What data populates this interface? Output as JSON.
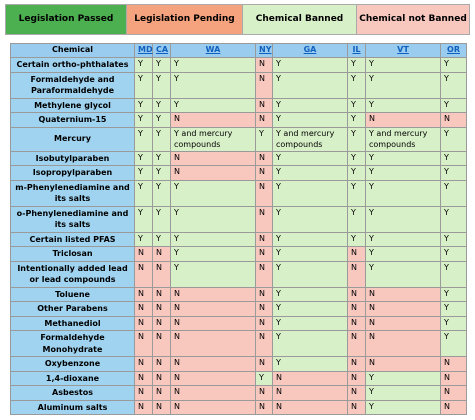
{
  "legend": [
    "Legislation Passed",
    "Legislation Pending",
    "Chemical Banned",
    "Chemical not Banned"
  ],
  "table": {
    "headers": [
      "Chemical",
      "MD",
      "CA",
      "WA",
      "NY",
      "GA",
      "IL",
      "VT",
      "OR"
    ],
    "rows": [
      [
        "Certain ortho-phthalates",
        "Y",
        "Y",
        "Y",
        "N",
        "Y",
        "Y",
        "Y",
        "Y"
      ],
      [
        "Formaldehyde and Paraformaldehyde",
        "Y",
        "Y",
        "Y",
        "N",
        "Y",
        "Y",
        "Y",
        "Y"
      ],
      [
        "Methylene glycol",
        "Y",
        "Y",
        "Y",
        "N",
        "Y",
        "Y",
        "Y",
        "Y"
      ],
      [
        "Quaternium-15",
        "Y",
        "Y",
        "N",
        "N",
        "Y",
        "Y",
        "N",
        "N"
      ],
      [
        "Mercury",
        "Y",
        "Y",
        "Y and mercury compounds",
        "Y",
        "Y and mercury compounds",
        "Y",
        "Y and mercury compounds",
        "Y"
      ],
      [
        "Isobutylparaben",
        "Y",
        "Y",
        "N",
        "N",
        "Y",
        "Y",
        "Y",
        "Y"
      ],
      [
        "Isopropylparaben",
        "Y",
        "Y",
        "N",
        "N",
        "Y",
        "Y",
        "Y",
        "Y"
      ],
      [
        "m-Phenylenediamine and its salts",
        "Y",
        "Y",
        "Y",
        "N",
        "Y",
        "Y",
        "Y",
        "Y"
      ],
      [
        "o-Phenylenediamine and its salts",
        "Y",
        "Y",
        "Y",
        "N",
        "Y",
        "Y",
        "Y",
        "Y"
      ],
      [
        "Certain listed PFAS",
        "Y",
        "Y",
        "Y",
        "N",
        "Y",
        "Y",
        "Y",
        "Y"
      ],
      [
        "Triclosan",
        "N",
        "N",
        "Y",
        "N",
        "Y",
        "N",
        "Y",
        "Y"
      ],
      [
        "Intentionally added lead or lead compounds",
        "N",
        "N",
        "Y",
        "N",
        "Y",
        "N",
        "Y",
        "Y"
      ],
      [
        "Toluene",
        "N",
        "N",
        "N",
        "N",
        "Y",
        "N",
        "N",
        "Y"
      ],
      [
        "Other Parabens",
        "N",
        "N",
        "N",
        "N",
        "Y",
        "N",
        "N",
        "Y"
      ],
      [
        "Methanediol",
        "N",
        "N",
        "N",
        "N",
        "Y",
        "N",
        "N",
        "Y"
      ],
      [
        "Formaldehyde Monohydrate",
        "N",
        "N",
        "N",
        "N",
        "Y",
        "N",
        "N",
        "Y"
      ],
      [
        "Oxybenzone",
        "N",
        "N",
        "N",
        "N",
        "Y",
        "N",
        "N",
        "N"
      ],
      [
        "1,4-dioxane",
        "N",
        "N",
        "N",
        "Y",
        "N",
        "N",
        "Y",
        "N"
      ],
      [
        "Asbestos",
        "N",
        "N",
        "N",
        "N",
        "N",
        "N",
        "Y",
        "N"
      ],
      [
        "Aluminum salts",
        "N",
        "N",
        "N",
        "N",
        "N",
        "N",
        "Y",
        "N"
      ]
    ]
  }
}
